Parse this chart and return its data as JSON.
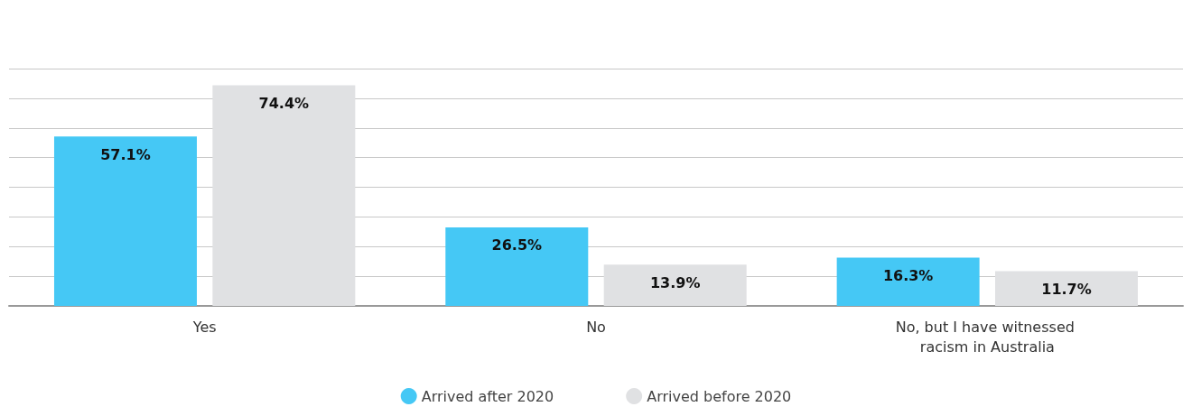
{
  "chart_data": {
    "type": "bar",
    "categories": [
      "Yes",
      "No",
      "No, but I have witnessed racism in Australia"
    ],
    "series": [
      {
        "name": "Arrived after 2020",
        "color": "#45c8f5",
        "values": [
          57.1,
          26.5,
          16.3
        ],
        "value_labels": [
          "57.1%",
          "26.5%",
          "16.3%"
        ]
      },
      {
        "name": "Arrived before 2020",
        "color": "#e0e1e3",
        "values": [
          74.4,
          13.9,
          11.7
        ],
        "value_labels": [
          "74.4%",
          "13.9%",
          "11.7%"
        ]
      }
    ],
    "grid": "y",
    "legend": "bottom",
    "tick_labels": "x"
  }
}
